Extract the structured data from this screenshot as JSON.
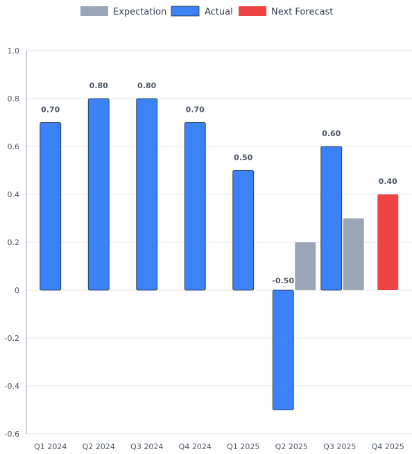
{
  "chart_data": {
    "type": "bar",
    "categories": [
      "Q1 2024",
      "Q2 2024",
      "Q3 2024",
      "Q4 2024",
      "Q1 2025",
      "Q2 2025",
      "Q3 2025",
      "Q4 2025"
    ],
    "series": [
      {
        "name": "Expectation",
        "color": "#9aa6b8",
        "values": [
          null,
          null,
          null,
          null,
          null,
          0.2,
          0.3,
          null
        ]
      },
      {
        "name": "Actual",
        "color": "#3b82f6",
        "values": [
          0.7,
          0.8,
          0.8,
          0.7,
          0.5,
          -0.5,
          0.6,
          null
        ]
      },
      {
        "name": "Next Forecast",
        "color": "#ef4444",
        "values": [
          null,
          null,
          null,
          null,
          null,
          null,
          null,
          0.4
        ]
      }
    ],
    "data_labels": [
      "0.70",
      "0.80",
      "0.80",
      "0.70",
      "0.50",
      "-0.50",
      "0.60",
      "0.40"
    ],
    "yticks": [
      "1.0",
      "0.8",
      "0.6",
      "0.4",
      "0.2",
      "0",
      "-0.2",
      "-0.4",
      "-0.6"
    ],
    "ylim": [
      -0.6,
      1.0
    ],
    "grid": true,
    "legend_position": "top-center"
  }
}
